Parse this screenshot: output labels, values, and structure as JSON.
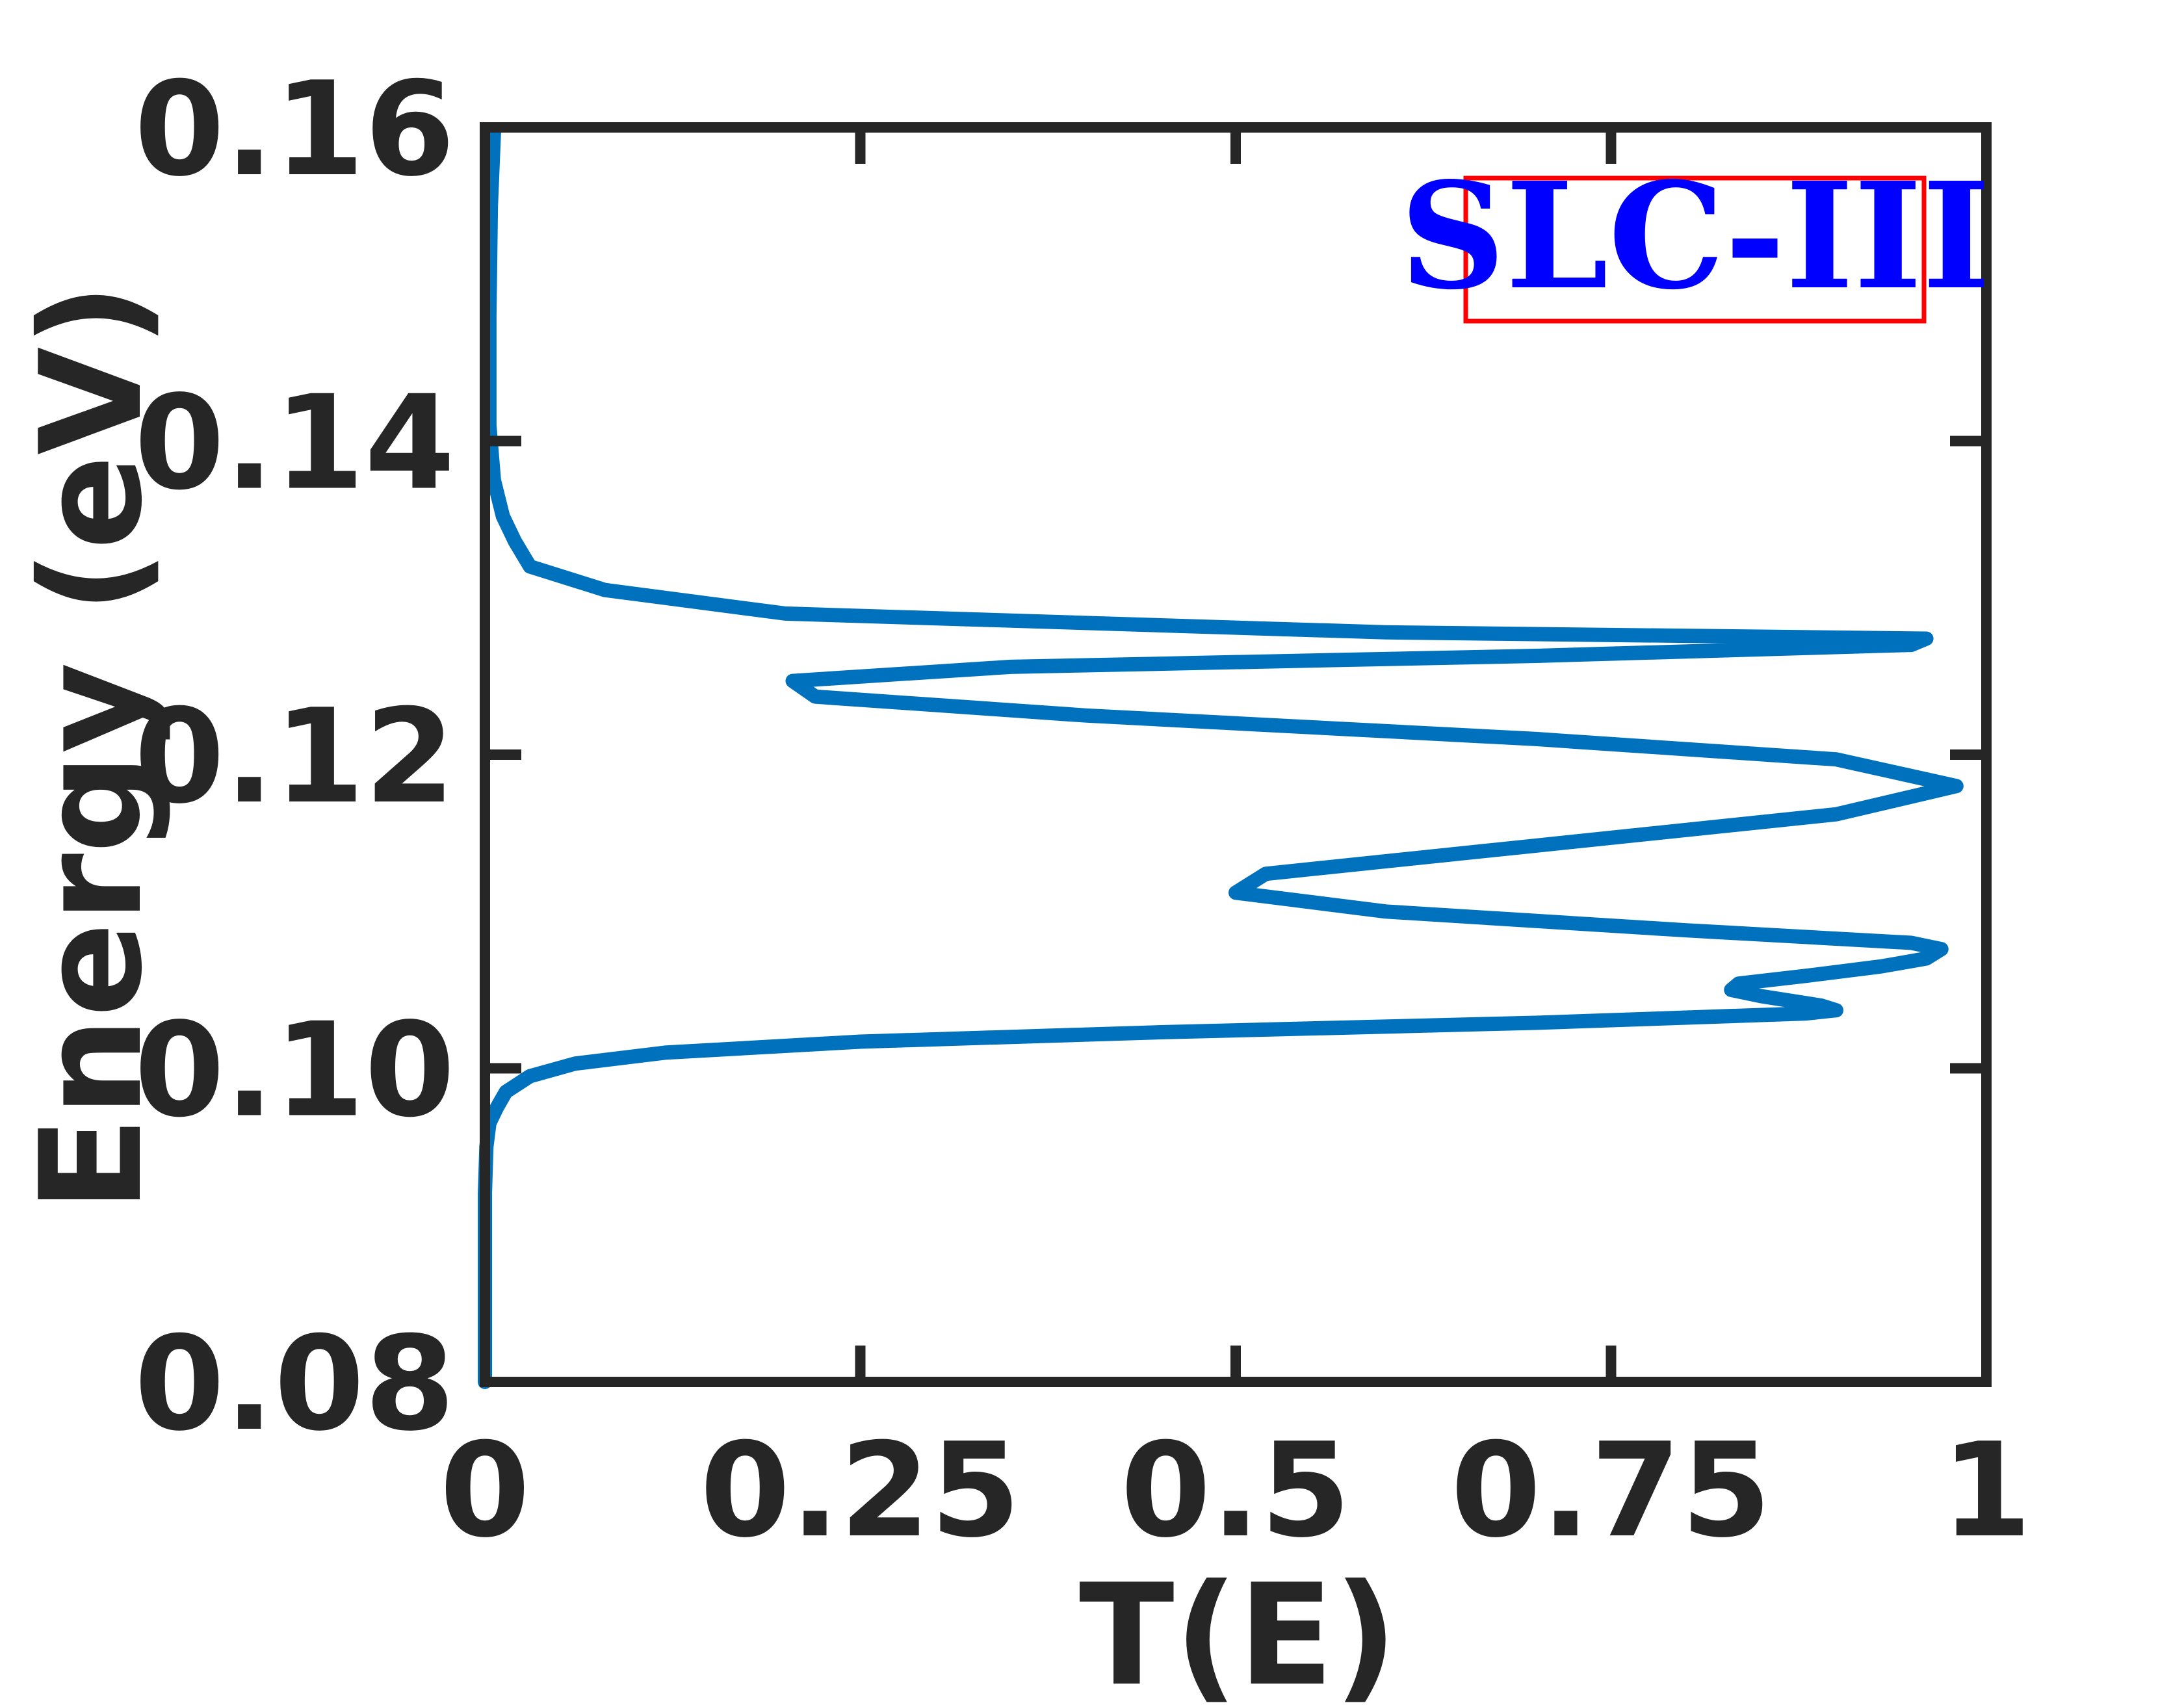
{
  "chart_data": {
    "type": "line",
    "title": "",
    "xlabel": "T(E)",
    "ylabel": "Energy (eV)",
    "xlim": [
      0,
      1
    ],
    "ylim": [
      0.08,
      0.16
    ],
    "grid": false,
    "x_ticks": [
      0,
      0.25,
      0.5,
      0.75,
      1
    ],
    "x_tick_labels": [
      "0",
      "0.25",
      "0.5",
      "0.75",
      "1"
    ],
    "y_ticks": [
      0.08,
      0.1,
      0.12,
      0.14,
      0.16
    ],
    "y_tick_labels": [
      "0.08",
      "0.10",
      "0.12",
      "0.14",
      "0.16"
    ],
    "legend": {
      "text": "SLC-III",
      "placement": "top-right",
      "text_color": "#0000ff",
      "border_color": "#ff0000"
    },
    "series": [
      {
        "color": "#0072bd",
        "points": [
          {
            "x": 0.0,
            "y": 0.08
          },
          {
            "x": 0.0,
            "y": 0.092
          },
          {
            "x": 0.001,
            "y": 0.095
          },
          {
            "x": 0.003,
            "y": 0.0965
          },
          {
            "x": 0.008,
            "y": 0.0975
          },
          {
            "x": 0.014,
            "y": 0.0985
          },
          {
            "x": 0.03,
            "y": 0.0995
          },
          {
            "x": 0.06,
            "y": 0.1003
          },
          {
            "x": 0.12,
            "y": 0.101
          },
          {
            "x": 0.25,
            "y": 0.1017
          },
          {
            "x": 0.45,
            "y": 0.1023
          },
          {
            "x": 0.7,
            "y": 0.1029
          },
          {
            "x": 0.88,
            "y": 0.1035
          },
          {
            "x": 0.9,
            "y": 0.1037
          },
          {
            "x": 0.89,
            "y": 0.104
          },
          {
            "x": 0.85,
            "y": 0.1046
          },
          {
            "x": 0.83,
            "y": 0.105
          },
          {
            "x": 0.835,
            "y": 0.1054
          },
          {
            "x": 0.88,
            "y": 0.1059
          },
          {
            "x": 0.93,
            "y": 0.1065
          },
          {
            "x": 0.96,
            "y": 0.107
          },
          {
            "x": 0.97,
            "y": 0.1076
          },
          {
            "x": 0.95,
            "y": 0.108
          },
          {
            "x": 0.8,
            "y": 0.1088
          },
          {
            "x": 0.6,
            "y": 0.11
          },
          {
            "x": 0.5,
            "y": 0.1112
          },
          {
            "x": 0.52,
            "y": 0.1124
          },
          {
            "x": 0.7,
            "y": 0.1142
          },
          {
            "x": 0.9,
            "y": 0.1162
          },
          {
            "x": 0.98,
            "y": 0.118
          },
          {
            "x": 0.9,
            "y": 0.1197
          },
          {
            "x": 0.7,
            "y": 0.121
          },
          {
            "x": 0.4,
            "y": 0.1225
          },
          {
            "x": 0.22,
            "y": 0.1237
          },
          {
            "x": 0.205,
            "y": 0.1247
          },
          {
            "x": 0.35,
            "y": 0.1256
          },
          {
            "x": 0.7,
            "y": 0.1263
          },
          {
            "x": 0.95,
            "y": 0.127
          },
          {
            "x": 0.96,
            "y": 0.1274
          },
          {
            "x": 0.6,
            "y": 0.1278
          },
          {
            "x": 0.2,
            "y": 0.129
          },
          {
            "x": 0.08,
            "y": 0.1305
          },
          {
            "x": 0.03,
            "y": 0.132
          },
          {
            "x": 0.02,
            "y": 0.1336
          },
          {
            "x": 0.012,
            "y": 0.1352
          },
          {
            "x": 0.006,
            "y": 0.1375
          },
          {
            "x": 0.003,
            "y": 0.141
          },
          {
            "x": 0.003,
            "y": 0.148
          },
          {
            "x": 0.004,
            "y": 0.155
          },
          {
            "x": 0.006,
            "y": 0.1597
          }
        ]
      }
    ]
  }
}
